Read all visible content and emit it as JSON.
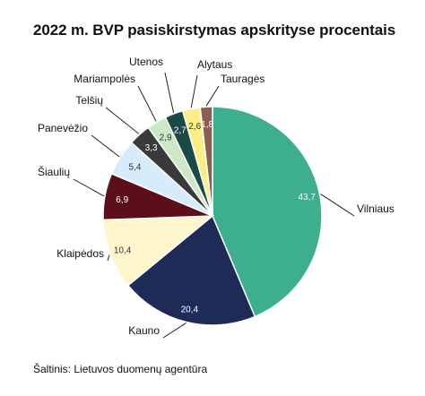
{
  "chart_data": {
    "type": "pie",
    "title": "2022 m. BVP pasiskirstymas apskrityse procentais",
    "source": "Šaltinis: Lietuvos duomenų agentūra",
    "categories": [
      "Vilniaus",
      "Kauno",
      "Klaipėdos",
      "Šiaulių",
      "Panevėžio",
      "Telšių",
      "Mariampolės",
      "Utenos",
      "Alytaus",
      "Tauragės"
    ],
    "values": [
      43.7,
      20.4,
      10.4,
      6.9,
      5.4,
      3.3,
      2.9,
      2.7,
      2.6,
      1.8
    ],
    "value_labels": [
      "43,7",
      "20,4",
      "10,4",
      "6,9",
      "5,4",
      "3,3",
      "2,9",
      "2,7",
      "2,6",
      "1,8"
    ],
    "colors": [
      "#3daf8f",
      "#1e2b57",
      "#fdf6cc",
      "#5a0f1a",
      "#d6ecfb",
      "#3a3a3a",
      "#cde8c6",
      "#1b4a46",
      "#fcee86",
      "#8a5d55"
    ],
    "label_colors": [
      "#ffffff",
      "#ffffff",
      "#333333",
      "#ffffff",
      "#333333",
      "#ffffff",
      "#333333",
      "#ffffff",
      "#333333",
      "#ffffff"
    ],
    "start_angle_deg": -90,
    "direction": "clockwise",
    "legend": "callout-labels"
  }
}
